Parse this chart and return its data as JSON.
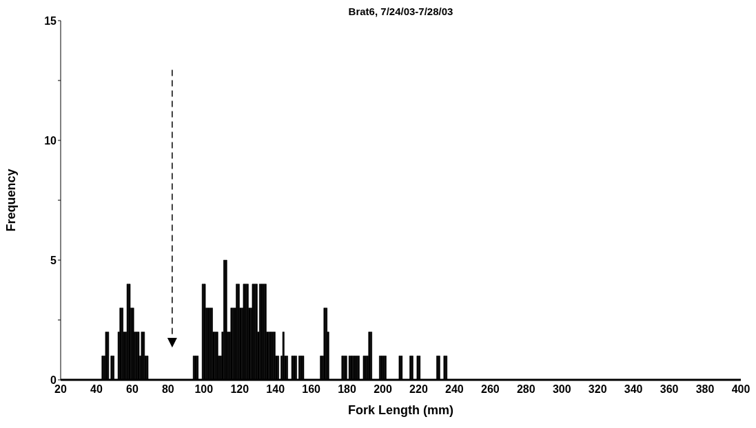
{
  "chart_data": {
    "type": "histogram",
    "title": "Brat6, 7/24/03-7/28/03",
    "xlabel": "Fork Length (mm)",
    "ylabel": "Frequency",
    "color": "#000000",
    "bins": [
      40,
      41,
      42,
      43,
      44,
      45,
      46,
      47,
      48,
      49,
      50,
      51,
      52,
      53,
      54,
      55,
      56,
      57,
      58,
      59,
      60,
      61,
      62,
      63,
      64,
      65,
      66,
      67,
      68,
      69,
      70,
      71,
      72,
      73,
      74,
      75,
      76,
      77,
      78,
      79,
      80,
      81,
      82,
      83,
      84,
      85,
      86,
      87,
      88,
      89,
      90,
      91,
      92,
      93,
      94,
      95,
      96,
      97,
      98,
      99,
      100,
      101,
      102,
      103,
      104,
      105,
      106,
      107,
      108,
      109,
      110,
      111,
      112,
      113,
      114,
      115,
      116,
      117,
      118,
      119,
      120,
      121,
      122,
      123,
      124,
      125,
      126,
      127,
      128,
      129,
      130,
      131,
      132,
      133,
      134,
      135,
      136,
      137,
      138,
      139,
      140,
      141,
      142,
      143,
      144,
      145,
      146,
      147,
      148,
      149,
      150,
      151,
      152,
      153,
      154,
      155,
      156,
      157,
      158,
      159,
      160,
      161,
      162,
      163,
      164,
      165,
      166,
      167,
      168,
      169,
      170,
      171,
      172,
      173,
      174,
      175,
      176,
      177,
      178,
      179,
      180,
      181,
      182,
      183,
      184,
      185,
      186,
      187,
      188,
      189,
      190,
      191,
      192,
      193,
      194,
      195,
      196,
      197,
      198,
      199,
      200,
      201,
      202,
      203,
      204,
      205,
      206,
      207,
      208,
      209,
      210,
      211,
      212,
      213,
      214,
      215,
      216,
      217,
      218,
      219,
      220,
      221,
      222,
      223,
      224,
      225,
      226,
      227,
      228,
      229,
      230,
      231,
      232,
      233,
      234,
      235,
      236,
      237,
      238,
      239,
      240
    ],
    "values": [
      0,
      0,
      0,
      1,
      1,
      2,
      2,
      0,
      1,
      1,
      0,
      0,
      2,
      3,
      3,
      2,
      2,
      4,
      4,
      3,
      3,
      2,
      2,
      2,
      1,
      2,
      2,
      1,
      1,
      0,
      0,
      0,
      0,
      0,
      0,
      0,
      0,
      0,
      0,
      0,
      0,
      0,
      0,
      0,
      0,
      0,
      0,
      0,
      0,
      0,
      0,
      0,
      0,
      0,
      1,
      1,
      1,
      0,
      0,
      4,
      4,
      3,
      3,
      3,
      3,
      2,
      2,
      2,
      1,
      1,
      2,
      5,
      5,
      2,
      2,
      3,
      3,
      3,
      4,
      4,
      3,
      3,
      4,
      4,
      4,
      3,
      3,
      4,
      4,
      4,
      2,
      4,
      4,
      4,
      4,
      2,
      2,
      2,
      2,
      2,
      1,
      1,
      0,
      1,
      2,
      1,
      1,
      0,
      0,
      1,
      1,
      1,
      0,
      1,
      1,
      1,
      0,
      0,
      0,
      0,
      0,
      0,
      0,
      0,
      0,
      1,
      1,
      3,
      3,
      2,
      0,
      0,
      0,
      0,
      0,
      0,
      0,
      1,
      1,
      1,
      0,
      1,
      1,
      1,
      1,
      1,
      1,
      0,
      0,
      1,
      1,
      1,
      2,
      2,
      0,
      0,
      0,
      0,
      1,
      1,
      1,
      1,
      0,
      0,
      0,
      0,
      0,
      0,
      0,
      1,
      1,
      0,
      0,
      0,
      0,
      1,
      1,
      0,
      0,
      1,
      1,
      0,
      0,
      0,
      0,
      0,
      0,
      0,
      0,
      0,
      1,
      1,
      0,
      0,
      1,
      1,
      0,
      0,
      0,
      0
    ],
    "xlim": [
      20,
      400
    ],
    "xticks": [
      20,
      40,
      60,
      80,
      100,
      120,
      140,
      160,
      180,
      200,
      220,
      240,
      260,
      280,
      300,
      320,
      340,
      360,
      380,
      400
    ],
    "ylim": [
      0,
      15
    ],
    "yticks": [
      0,
      {
        "value": 2.5,
        "label": null
      },
      5,
      {
        "value": 7.5,
        "label": null
      },
      10,
      {
        "value": 12.5,
        "label": null
      },
      15
    ]
  }
}
